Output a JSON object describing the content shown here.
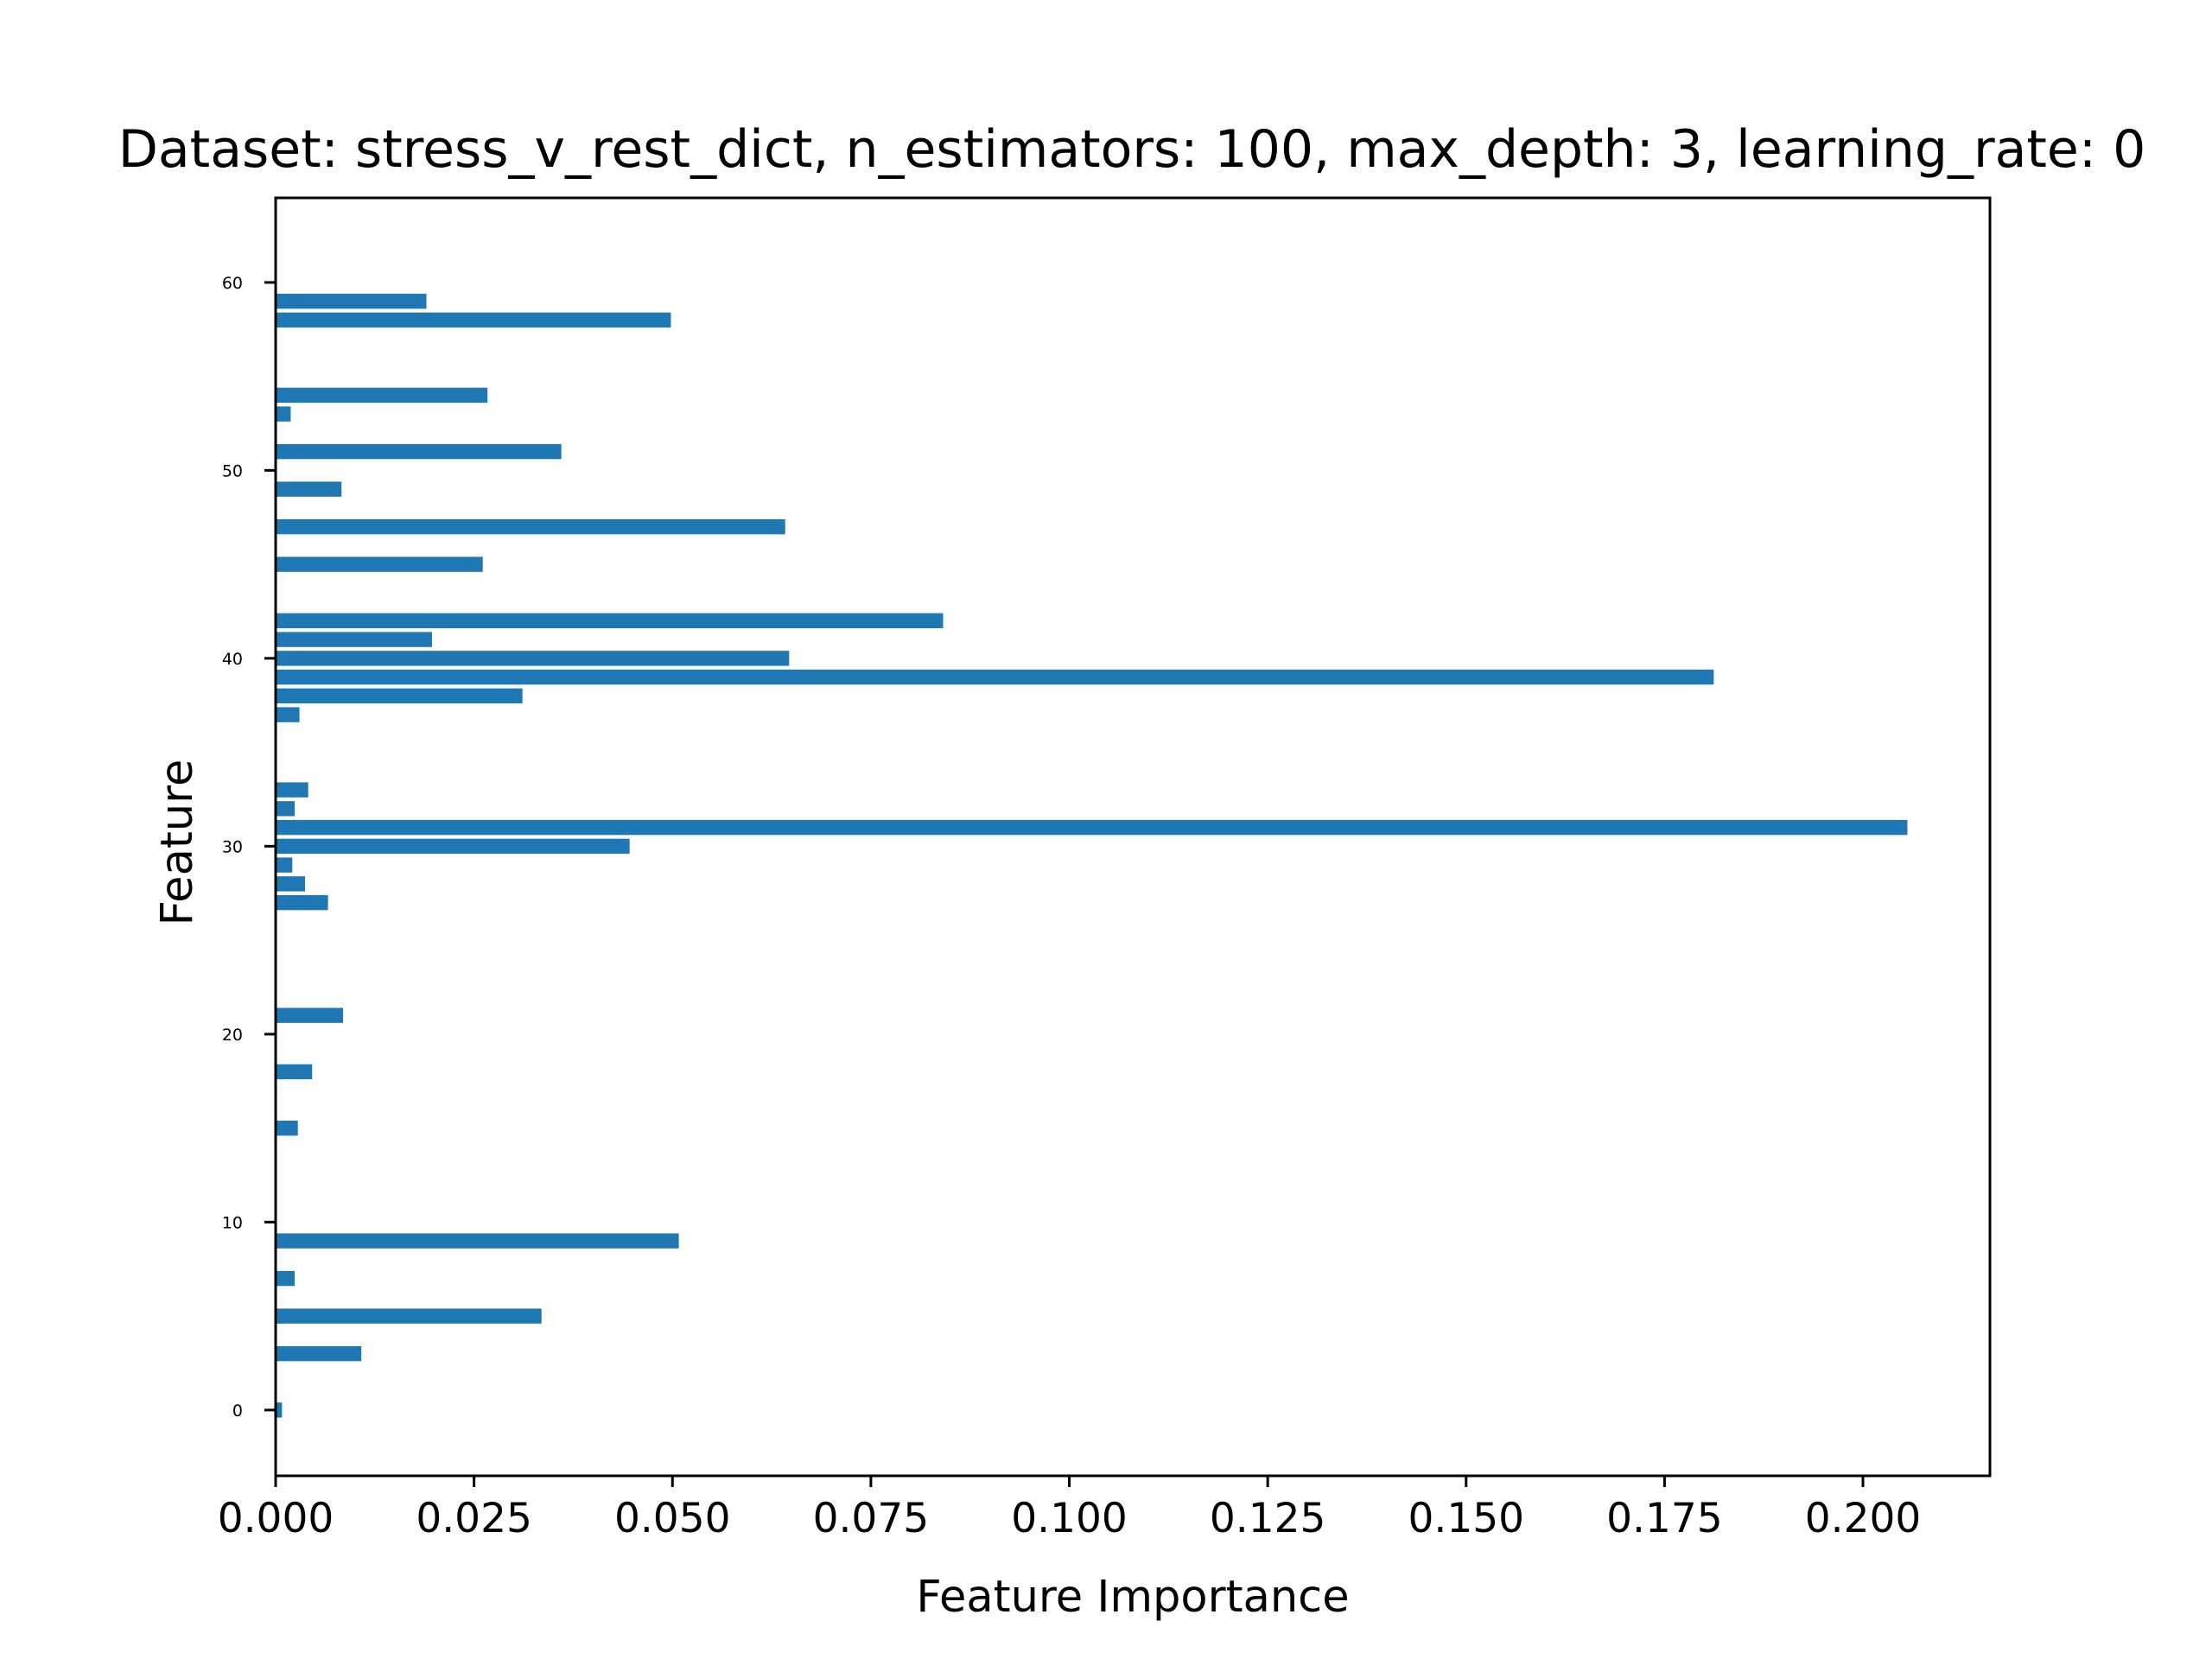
{
  "chart_data": {
    "type": "bar",
    "orientation": "horizontal",
    "title": "Dataset: stress_v_rest_dict, n_estimators: 100, max_depth: 3, learning_rate: 0",
    "xlabel": "Feature Importance",
    "ylabel": "Feature",
    "xlim": [
      0,
      0.216
    ],
    "ylim": [
      -3.5,
      64.5
    ],
    "xticks": [
      "0.000",
      "0.025",
      "0.050",
      "0.075",
      "0.100",
      "0.125",
      "0.150",
      "0.175",
      "0.200"
    ],
    "yticks": [
      "0",
      "10",
      "20",
      "30",
      "40",
      "50",
      "60"
    ],
    "color": "#1f77b4",
    "grid": false,
    "bars": [
      {
        "feature": 0,
        "value": 0.0008
      },
      {
        "feature": 3,
        "value": 0.0108
      },
      {
        "feature": 5,
        "value": 0.0335
      },
      {
        "feature": 7,
        "value": 0.0024
      },
      {
        "feature": 9,
        "value": 0.0508
      },
      {
        "feature": 15,
        "value": 0.0028
      },
      {
        "feature": 18,
        "value": 0.0046
      },
      {
        "feature": 21,
        "value": 0.0085
      },
      {
        "feature": 27,
        "value": 0.0066
      },
      {
        "feature": 28,
        "value": 0.0037
      },
      {
        "feature": 29,
        "value": 0.0021
      },
      {
        "feature": 30,
        "value": 0.0446
      },
      {
        "feature": 31,
        "value": 0.2056
      },
      {
        "feature": 32,
        "value": 0.0024
      },
      {
        "feature": 33,
        "value": 0.0041
      },
      {
        "feature": 37,
        "value": 0.003
      },
      {
        "feature": 38,
        "value": 0.0311
      },
      {
        "feature": 39,
        "value": 0.1812
      },
      {
        "feature": 40,
        "value": 0.0647
      },
      {
        "feature": 41,
        "value": 0.0197
      },
      {
        "feature": 42,
        "value": 0.0841
      },
      {
        "feature": 45,
        "value": 0.0261
      },
      {
        "feature": 47,
        "value": 0.0642
      },
      {
        "feature": 49,
        "value": 0.0083
      },
      {
        "feature": 51,
        "value": 0.036
      },
      {
        "feature": 53,
        "value": 0.0019
      },
      {
        "feature": 54,
        "value": 0.0267
      },
      {
        "feature": 58,
        "value": 0.0498
      },
      {
        "feature": 59,
        "value": 0.019
      }
    ]
  }
}
